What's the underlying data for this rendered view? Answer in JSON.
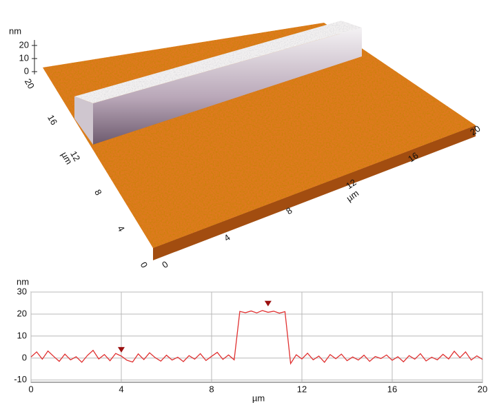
{
  "chart_data": [
    {
      "type": "surface",
      "zlabel": "nm",
      "xlabel": "µm",
      "ylabel": "µm",
      "xlim": [
        0,
        20
      ],
      "ylim": [
        0,
        20
      ],
      "zlim": [
        0,
        20
      ],
      "xticks": [
        0,
        4,
        8,
        12,
        16,
        20
      ],
      "yticks": [
        0,
        4,
        8,
        12,
        16,
        20
      ],
      "zticks": [
        0,
        10,
        20
      ]
    },
    {
      "type": "line",
      "xlabel": "µm",
      "ylabel": "nm",
      "color": "#e03030",
      "grid": true,
      "xlim": [
        0,
        20
      ],
      "ylim": [
        -11,
        30
      ],
      "xticks": [
        0,
        4,
        8,
        12,
        16,
        20
      ],
      "yticks": [
        -10,
        0,
        10,
        20,
        30
      ],
      "x": [
        0,
        0.25,
        0.5,
        0.75,
        1,
        1.25,
        1.5,
        1.75,
        2,
        2.25,
        2.5,
        2.75,
        3,
        3.25,
        3.5,
        3.75,
        4,
        4.25,
        4.5,
        4.75,
        5,
        5.25,
        5.5,
        5.75,
        6,
        6.25,
        6.5,
        6.75,
        7,
        7.25,
        7.5,
        7.75,
        8,
        8.25,
        8.5,
        8.75,
        9,
        9.25,
        9.5,
        9.75,
        10,
        10.25,
        10.5,
        10.75,
        11,
        11.25,
        11.5,
        11.75,
        12,
        12.25,
        12.5,
        12.75,
        13,
        13.25,
        13.5,
        13.75,
        14,
        14.25,
        14.5,
        14.75,
        15,
        15.25,
        15.5,
        15.75,
        16,
        16.25,
        16.5,
        16.75,
        17,
        17.25,
        17.5,
        17.75,
        18,
        18.25,
        18.5,
        18.75,
        19,
        19.25,
        19.5,
        19.75,
        20
      ],
      "values": [
        0.5,
        2.8,
        -0.5,
        3.2,
        0.8,
        -1.5,
        1.8,
        -0.8,
        0.6,
        -1.9,
        1.2,
        3.5,
        -0.4,
        1.6,
        -1.2,
        2.1,
        0.9,
        -1.0,
        -1.8,
        1.9,
        -0.7,
        2.4,
        0.2,
        -1.4,
        1.3,
        -0.9,
        0.4,
        -1.6,
        1.1,
        -0.5,
        2.0,
        -1.1,
        0.8,
        2.6,
        -0.6,
        1.4,
        -0.8,
        21.2,
        20.6,
        21.4,
        20.5,
        21.6,
        20.8,
        21.3,
        20.4,
        21.1,
        -2.5,
        1.5,
        -0.4,
        2.2,
        -0.8,
        0.9,
        -1.9,
        1.6,
        -0.3,
        1.8,
        -1.2,
        0.5,
        -0.9,
        1.3,
        -1.5,
        0.7,
        -0.2,
        1.4,
        -1.0,
        0.6,
        -1.7,
        1.1,
        -0.5,
        2.0,
        -1.3,
        0.4,
        -0.8,
        1.7,
        -0.4,
        3.1,
        0.2,
        2.8,
        -0.9,
        1.0,
        -0.6
      ],
      "markers": {
        "color": "#9b1010",
        "x": [
          4,
          10.5
        ],
        "y": [
          2.5,
          23.5
        ]
      }
    }
  ]
}
